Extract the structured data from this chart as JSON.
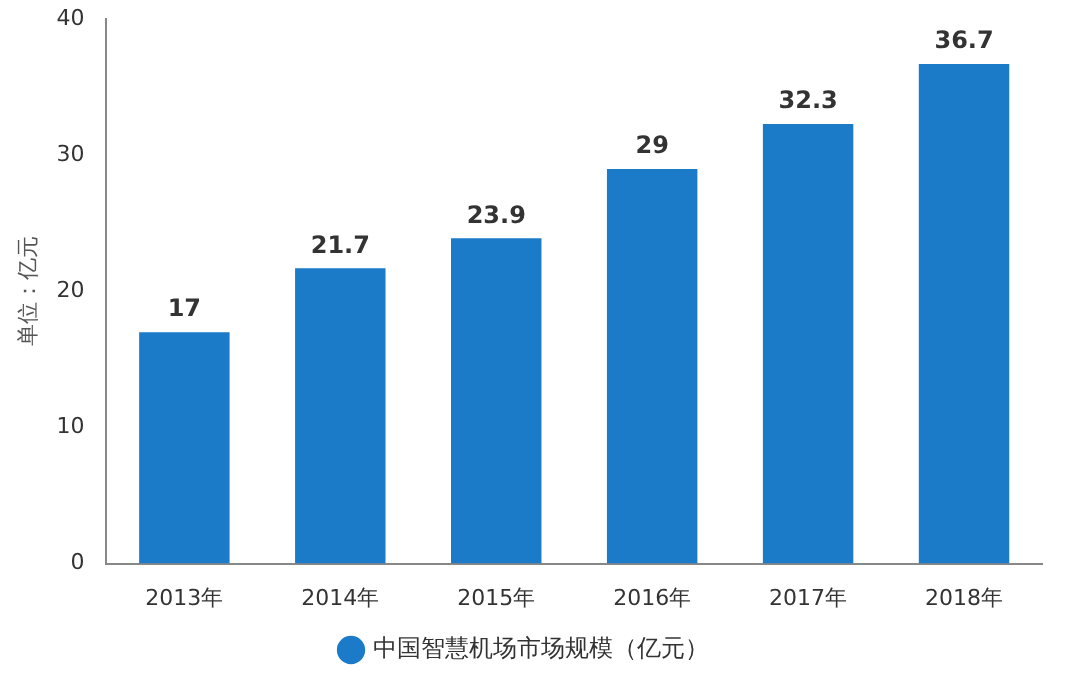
{
  "chart_data": {
    "type": "bar",
    "ylabel": "单位：亿元",
    "categories": [
      "2013年",
      "2014年",
      "2015年",
      "2016年",
      "2017年",
      "2018年"
    ],
    "series": [
      {
        "name": "中国智慧机场市场规模（亿元）",
        "color": "#1b7bc9",
        "values": [
          17,
          21.7,
          23.9,
          29,
          32.3,
          36.7
        ]
      }
    ],
    "ylim": [
      0,
      40
    ],
    "yticks": [
      0,
      10,
      20,
      30,
      40
    ],
    "grid": false,
    "legend": "bottom",
    "marker": "circle",
    "data_labels": true
  }
}
